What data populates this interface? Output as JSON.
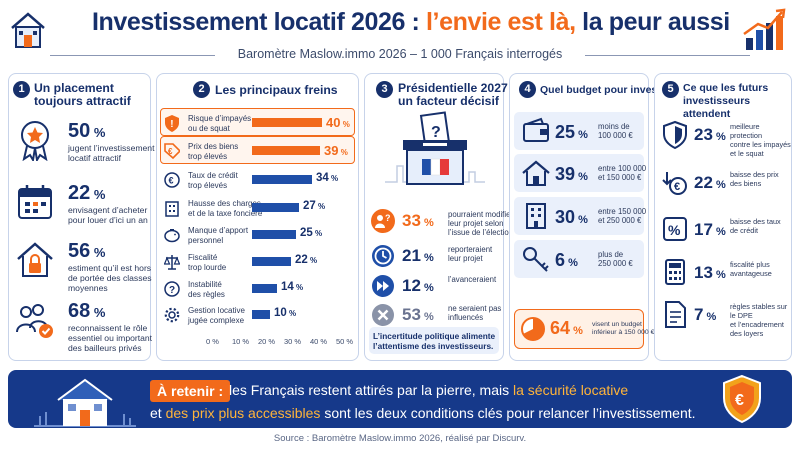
{
  "header": {
    "title_part1": "Investissement locatif 2026 : ",
    "title_part2": "l’envie est là,",
    "title_part3": " la peur aussi",
    "subtitle": "Baromètre Maslow.immo 2026 – 1 000 Français interrogés"
  },
  "colors": {
    "navy": "#17306b",
    "orange": "#f26a1b",
    "blue": "#1f4fa8",
    "banner": "#16398a"
  },
  "panel1": {
    "number": "1",
    "title_line1": "Un placement",
    "title_line2": "toujours attractif",
    "items": [
      {
        "icon": "award-ribbon-icon",
        "value": "50",
        "unit": " %",
        "line1": "jugent l’investissement",
        "line2": "locatif attractif",
        "line3": ""
      },
      {
        "icon": "calendar-icon",
        "value": "22",
        "unit": " %",
        "line1": "envisagent d’acheter",
        "line2": "pour louer d’ici un an",
        "line3": ""
      },
      {
        "icon": "house-lock-icon",
        "value": "56",
        "unit": " %",
        "line1": "estiment qu’il est hors",
        "line2": "de portée des classes",
        "line3": "moyennes"
      },
      {
        "icon": "people-check-icon",
        "value": "68",
        "unit": " %",
        "line1": "reconnaissent le rôle",
        "line2": "essentiel ou important",
        "line3": "des bailleurs privés"
      }
    ]
  },
  "panel2": {
    "number": "2",
    "title": "Les principaux freins",
    "items": [
      {
        "icon": "shield-warning-icon",
        "line1": "Risque d’impayés",
        "line2": "ou de squat",
        "value": 40,
        "label": "40",
        "highlight": true
      },
      {
        "icon": "euro-tag-icon",
        "line1": "Prix des biens",
        "line2": "trop élevés",
        "value": 39,
        "label": "39",
        "highlight": true
      },
      {
        "icon": "euro-coin-icon",
        "line1": "Taux de crédit",
        "line2": "trop élevés",
        "value": 34,
        "label": "34",
        "highlight": false
      },
      {
        "icon": "building-tax-icon",
        "line1": "Hausse des charges",
        "line2": "et de la taxe foncière",
        "value": 27,
        "label": "27",
        "highlight": false
      },
      {
        "icon": "piggy-bank-icon",
        "line1": "Manque d’apport",
        "line2": "personnel",
        "value": 25,
        "label": "25",
        "highlight": false
      },
      {
        "icon": "scales-icon",
        "line1": "Fiscalité",
        "line2": "trop lourde",
        "value": 22,
        "label": "22",
        "highlight": false
      },
      {
        "icon": "question-circle-icon",
        "line1": "Instabilité",
        "line2": "des règles",
        "value": 14,
        "label": "14",
        "highlight": false
      },
      {
        "icon": "gear-icon",
        "line1": "Gestion locative",
        "line2": "jugée complexe",
        "value": 10,
        "label": "10",
        "highlight": false
      }
    ],
    "unit": " %",
    "axis": [
      "0 %",
      "10 %",
      "20 %",
      "30 %",
      "40 %",
      "50 %"
    ],
    "axis_max": 50
  },
  "panel3": {
    "number": "3",
    "title_line1": "Présidentielle 2027 :",
    "title_line2": "un facteur décisif",
    "items": [
      {
        "icon": "question-person-icon",
        "value": "33",
        "unit": " %",
        "line1": "pourraient modifier",
        "line2": "leur projet selon",
        "line3": "l’issue de l’élection",
        "accent": "orange"
      },
      {
        "icon": "clock-icon",
        "value": "21",
        "unit": " %",
        "line1": "reporteraient",
        "line2": "leur projet",
        "line3": "",
        "accent": "blue"
      },
      {
        "icon": "fast-forward-icon",
        "value": "12",
        "unit": " %",
        "line1": "l’avanceraient",
        "line2": "",
        "line3": "",
        "accent": "blue"
      },
      {
        "icon": "close-circle-icon",
        "value": "53",
        "unit": " %",
        "line1": "ne seraient pas",
        "line2": "influencés",
        "line3": "",
        "accent": "gray"
      }
    ],
    "note_line1": "L’incertitude politique alimente",
    "note_line2": "l’attentisme des investisseurs."
  },
  "panel4": {
    "number": "4",
    "title": "Quel budget pour investir ?",
    "items": [
      {
        "icon": "wallet-icon",
        "value": "25",
        "unit": " %",
        "line1": "moins de",
        "line2": "100 000 €"
      },
      {
        "icon": "house-icon",
        "value": "39",
        "unit": " %",
        "line1": "entre 100 000",
        "line2": "et 150 000 €"
      },
      {
        "icon": "building-icon",
        "value": "30",
        "unit": " %",
        "line1": "entre 150 000",
        "line2": "et 250 000 €"
      },
      {
        "icon": "key-icon",
        "value": "6",
        "unit": " %",
        "line1": "plus de",
        "line2": "250 000 €"
      }
    ],
    "highlight": {
      "icon": "pie-chart-icon",
      "value": "64",
      "unit": " %",
      "line1": "visent un budget",
      "line2": "inférieur à 150 000 €"
    }
  },
  "panel5": {
    "number": "5",
    "title_line1": "Ce que les futurs",
    "title_line2": "investisseurs attendent",
    "items": [
      {
        "icon": "shield-icon",
        "value": "23",
        "unit": " %",
        "line1": "meilleure protection",
        "line2": "contre les impayés",
        "line3": "et le squat"
      },
      {
        "icon": "euro-down-icon",
        "value": "22",
        "unit": " %",
        "line1": "baisse des prix",
        "line2": "des biens",
        "line3": ""
      },
      {
        "icon": "percent-icon",
        "value": "17",
        "unit": " %",
        "line1": "baisse des taux",
        "line2": "de crédit",
        "line3": ""
      },
      {
        "icon": "calculator-icon",
        "value": "13",
        "unit": " %",
        "line1": "fiscalité plus",
        "line2": "avantageuse",
        "line3": ""
      },
      {
        "icon": "document-icon",
        "value": "7",
        "unit": " %",
        "line1": "règles stables sur le DPE",
        "line2": "et l’encadrement",
        "line3": "des loyers"
      }
    ]
  },
  "bottom": {
    "label": "À retenir :",
    "line1_a": "les Français restent attirés par la pierre, mais ",
    "line1_b": "la sécurité locative",
    "line2_a": "et ",
    "line2_b": "des prix plus accessibles",
    "line2_c": " sont les deux conditions clés pour relancer l’investissement."
  },
  "source": "Source : Baromètre Maslow.immo 2026, réalisé par Discurv."
}
